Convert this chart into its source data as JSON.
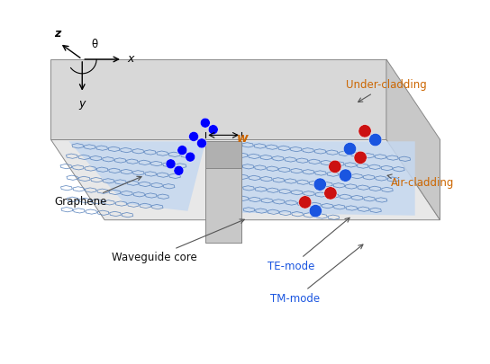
{
  "labels": {
    "TM_mode": "TM-mode",
    "TE_mode": "TE-mode",
    "waveguide_core": "Waveguide core",
    "graphene": "Graphene",
    "air_cladding": "Air-cladding",
    "under_cladding": "Under-cladding",
    "w_label": "w",
    "theta_label": "θ",
    "x_label": "x",
    "y_label": "y",
    "z_label": "z"
  },
  "colors": {
    "blue": "#1a55e0",
    "red": "#cc1111",
    "box_top": "#e8e8e8",
    "box_left": "#d8d8d8",
    "box_right": "#c8c8c8",
    "ridge_top": "#c8c8c8",
    "ridge_left": "#b0b0b0",
    "ridge_right": "#a0a0a0",
    "graphene_fill": "#c5d8f0",
    "graphene_hex": "#5580bb",
    "edge_color": "#888888",
    "text_dark": "#111111",
    "text_blue": "#1a55e0",
    "text_orange": "#cc6600"
  },
  "bg": "#ffffff"
}
